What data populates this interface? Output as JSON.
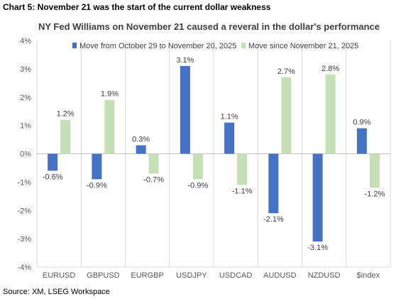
{
  "header": "Chart 5: November 21 was the start of the current dollar weakness",
  "source": "Source: XM, LSEG Workspace",
  "chart_data": {
    "type": "bar",
    "title": "NY Fed Williams on November 21 caused a reveral in the dollar's performance",
    "categories": [
      "EURUSD",
      "GBPUSD",
      "EURGBP",
      "USDJPY",
      "USDCAD",
      "AUDUSD",
      "NZDUSD",
      "$index"
    ],
    "series": [
      {
        "name": "Move from October 29 to November 20, 2025",
        "color": "#4472c4",
        "values": [
          -0.6,
          -0.9,
          0.3,
          3.1,
          1.1,
          -2.1,
          -3.1,
          0.9
        ],
        "labels": [
          "-0.6%",
          "-0.9%",
          "0.3%",
          "3.1%",
          "1.1%",
          "-2.1%",
          "-3.1%",
          "0.9%"
        ]
      },
      {
        "name": "Move since November 21, 2025",
        "color": "#c5e0b4",
        "values": [
          1.2,
          1.9,
          -0.7,
          -0.9,
          -1.1,
          2.7,
          2.8,
          -1.2
        ],
        "labels": [
          "1.2%",
          "1.9%",
          "-0.7%",
          "-0.9%",
          "-1.1%",
          "2.7%",
          "2.8%",
          "-1.2%"
        ]
      }
    ],
    "ylim": [
      -4,
      4
    ],
    "yticks": [
      "4%",
      "3%",
      "2%",
      "1%",
      "0%",
      "-1%",
      "-2%",
      "-3%",
      "-4%"
    ],
    "grid": "vertical category separators",
    "legend": "top"
  }
}
